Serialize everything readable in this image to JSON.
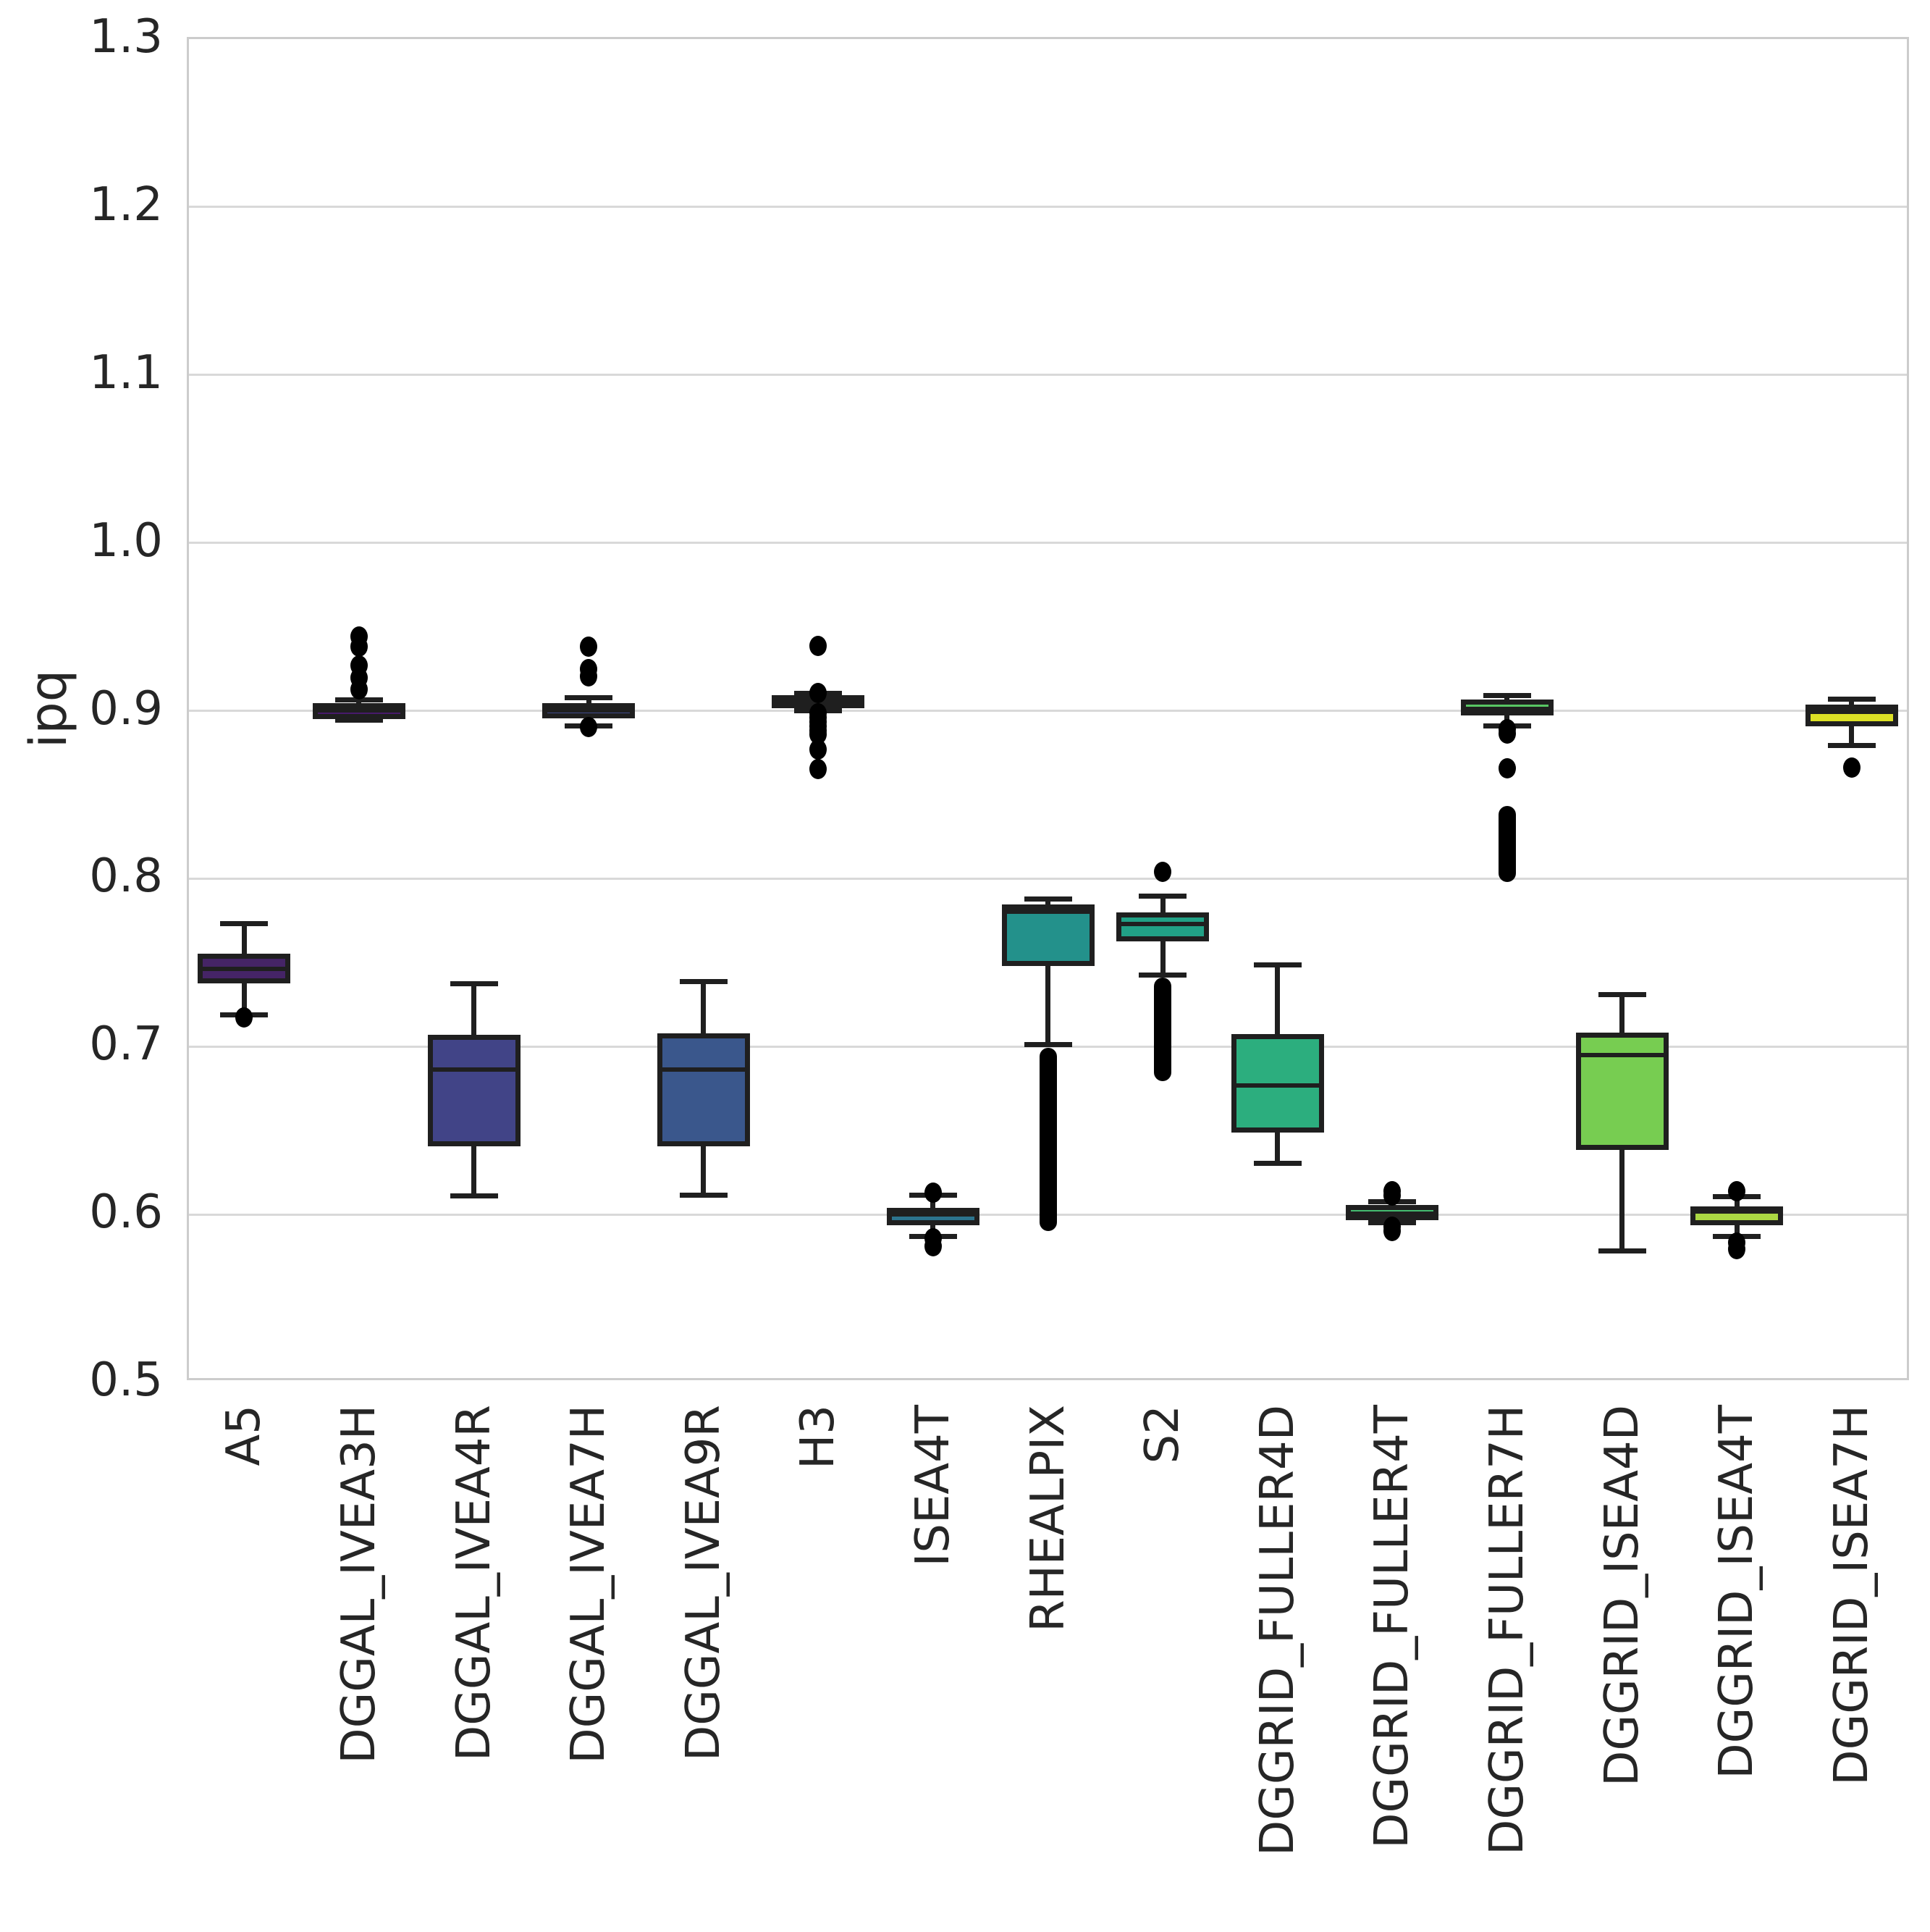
{
  "chart_data": {
    "type": "box",
    "title": "",
    "xlabel": "",
    "ylabel": "ipq",
    "ylim": [
      0.5,
      1.3
    ],
    "ytick_labels": [
      "0.5",
      "0.6",
      "0.7",
      "0.8",
      "0.9",
      "1.0",
      "1.1",
      "1.2",
      "1.3"
    ],
    "yticks": [
      0.5,
      0.6,
      0.7,
      0.8,
      0.9,
      1.0,
      1.1,
      1.2,
      1.3
    ],
    "grid": "horizontal",
    "legend": "none",
    "categories": [
      "A5",
      "DGGAL_IVEA3H",
      "DGGAL_IVEA4R",
      "DGGAL_IVEA7H",
      "DGGAL_IVEA9R",
      "H3",
      "ISEA4T",
      "RHEALPIX",
      "S2",
      "DGGRID_FULLER4D",
      "DGGRID_FULLER4T",
      "DGGRID_FULLER7H",
      "DGGRID_ISEA4D",
      "DGGRID_ISEA4T",
      "DGGRID_ISEA7H"
    ],
    "series": [
      {
        "label": "A5",
        "color": "#452466",
        "whislo": 0.7174,
        "q1": 0.7377,
        "med": 0.745,
        "q3": 0.7527,
        "whishi": 0.772,
        "fliers": [
          0.716
        ],
        "flier_strips": []
      },
      {
        "label": "DGGAL_IVEA3H",
        "color": "#471a6b",
        "whislo": 0.893,
        "q1": 0.8952,
        "med": 0.899,
        "q3": 0.9016,
        "whishi": 0.905,
        "fliers": [
          0.9114,
          0.9183,
          0.9257,
          0.937,
          0.943
        ],
        "flier_strips": []
      },
      {
        "label": "DGGAL_IVEA4R",
        "color": "#414487",
        "whislo": 0.6096,
        "q1": 0.641,
        "med": 0.685,
        "q3": 0.704,
        "whishi": 0.7363,
        "fliers": [],
        "flier_strips": []
      },
      {
        "label": "DGGAL_IVEA7H",
        "color": "#3f4a8a",
        "whislo": 0.8897,
        "q1": 0.8957,
        "med": 0.899,
        "q3": 0.9016,
        "whishi": 0.9066,
        "fliers": [
          0.937,
          0.9235,
          0.919,
          0.889
        ],
        "flier_strips": []
      },
      {
        "label": "DGGAL_IVEA9R",
        "color": "#3a578c",
        "whislo": 0.61,
        "q1": 0.641,
        "med": 0.685,
        "q3": 0.705,
        "whishi": 0.7375,
        "fliers": [],
        "flier_strips": []
      },
      {
        "label": "H3",
        "color": "#33648d",
        "whislo": 0.8988,
        "q1": 0.9016,
        "med": 0.904,
        "q3": 0.9066,
        "whishi": 0.9092,
        "fliers": [
          0.9374,
          0.9092,
          0.897,
          0.8945,
          0.892,
          0.8895,
          0.887,
          0.8845,
          0.8755,
          0.864
        ],
        "flier_strips": []
      },
      {
        "label": "ISEA4T",
        "color": "#2c748e",
        "whislo": 0.5857,
        "q1": 0.594,
        "med": 0.5988,
        "q3": 0.601,
        "whishi": 0.6104,
        "fliers": [
          0.6117,
          0.5845,
          0.58
        ],
        "flier_strips": []
      },
      {
        "label": "RHEALPIX",
        "color": "#23918b",
        "whislo": 0.7,
        "q1": 0.7484,
        "med": 0.779,
        "q3": 0.782,
        "whishi": 0.7867,
        "fliers": [],
        "flier_strips": [
          [
            0.589,
            0.698
          ]
        ]
      },
      {
        "label": "S2",
        "color": "#21a186",
        "whislo": 0.7415,
        "q1": 0.7627,
        "med": 0.7717,
        "q3": 0.7773,
        "whishi": 0.7885,
        "fliers": [
          0.8027
        ],
        "flier_strips": [
          [
            0.678,
            0.74
          ]
        ]
      },
      {
        "label": "DGGRID_FULLER4D",
        "color": "#2cae7e",
        "whislo": 0.629,
        "q1": 0.649,
        "med": 0.6755,
        "q3": 0.7045,
        "whishi": 0.7475,
        "fliers": [],
        "flier_strips": []
      },
      {
        "label": "DGGRID_FULLER4T",
        "color": "#44bb70",
        "whislo": 0.5936,
        "q1": 0.597,
        "med": 0.599,
        "q3": 0.6027,
        "whishi": 0.6065,
        "fliers": [
          0.6125,
          0.61,
          0.5915,
          0.589
        ],
        "flier_strips": []
      },
      {
        "label": "DGGRID_FULLER7H",
        "color": "#58c663",
        "whislo": 0.8897,
        "q1": 0.8974,
        "med": 0.9,
        "q3": 0.904,
        "whishi": 0.9079,
        "fliers": [
          0.8875,
          0.885,
          0.8643
        ],
        "flier_strips": [
          [
            0.7965,
            0.8419
          ]
        ]
      },
      {
        "label": "DGGRID_ISEA4D",
        "color": "#77cd51",
        "whislo": 0.5768,
        "q1": 0.6385,
        "med": 0.6935,
        "q3": 0.7055,
        "whishi": 0.7295,
        "fliers": [],
        "flier_strips": []
      },
      {
        "label": "DGGRID_ISEA4T",
        "color": "#abd843",
        "whislo": 0.5854,
        "q1": 0.594,
        "med": 0.6005,
        "q3": 0.602,
        "whishi": 0.6095,
        "fliers": [
          0.6125,
          0.582,
          0.578
        ],
        "flier_strips": []
      },
      {
        "label": "DGGRID_ISEA7H",
        "color": "#dce025",
        "whislo": 0.878,
        "q1": 0.891,
        "med": 0.898,
        "q3": 0.901,
        "whishi": 0.9057,
        "fliers": [
          0.8647
        ],
        "flier_strips": []
      }
    ]
  },
  "colors": {
    "background": "#ffffff",
    "grid": "#d9d9d9",
    "spine": "#cccccc",
    "line": "#1f1f1f",
    "text": "#262626"
  }
}
